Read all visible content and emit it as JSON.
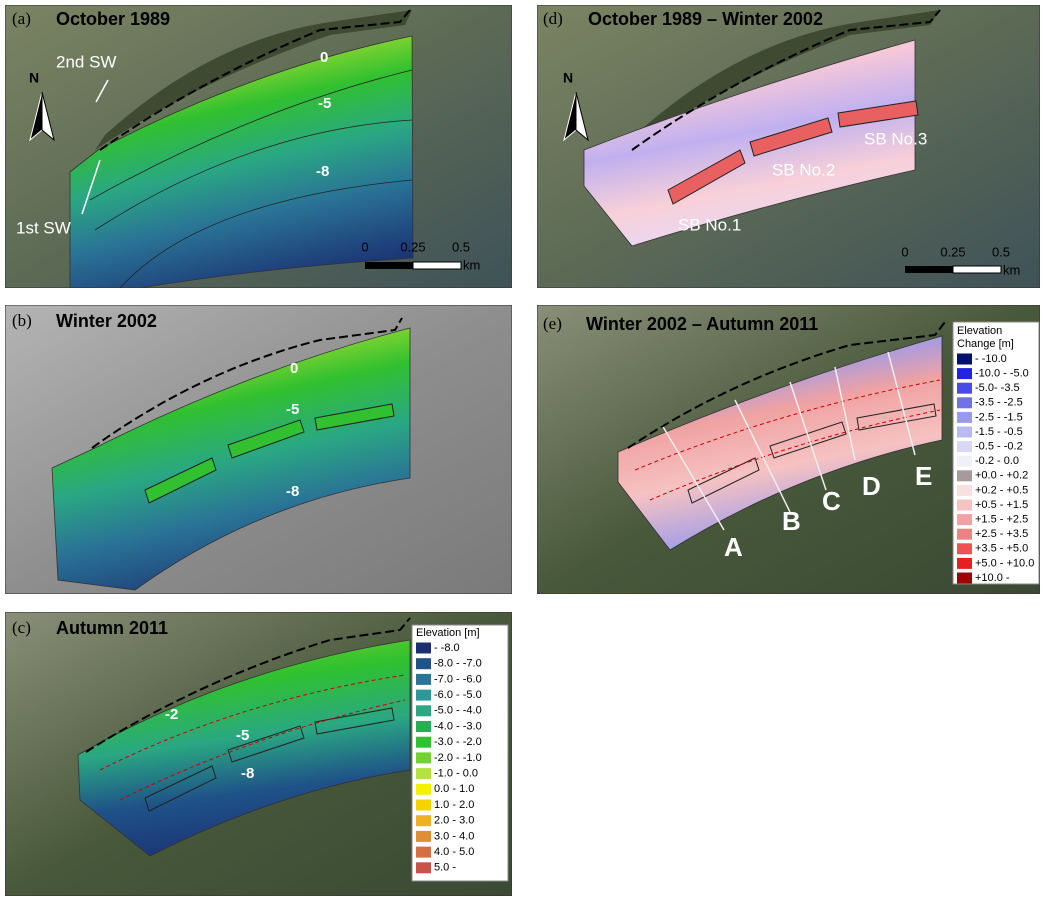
{
  "panels": {
    "a": {
      "label": "(a)",
      "title": "October 1989",
      "contours": [
        "0",
        "-5",
        "-8"
      ],
      "annotations": [
        "2nd SW",
        "1st SW"
      ],
      "north": "N",
      "scale": [
        "0",
        "0.25",
        "0.5",
        "km"
      ]
    },
    "b": {
      "label": "(b)",
      "title": "Winter 2002",
      "contours": [
        "0",
        "-5",
        "-8"
      ]
    },
    "c": {
      "label": "(c)",
      "title": "Autumn 2011",
      "contours": [
        "-2",
        "-5",
        "-8"
      ],
      "legend": {
        "title": [
          "Elevation [m]"
        ],
        "items": [
          {
            "label": "- -8.0",
            "color": "#1b2f72"
          },
          {
            "label": "-8.0 - -7.0",
            "color": "#1f5288"
          },
          {
            "label": "-7.0 - -6.0",
            "color": "#2a7496"
          },
          {
            "label": "-6.0 - -5.0",
            "color": "#2d9898"
          },
          {
            "label": "-5.0 - -4.0",
            "color": "#2aa882"
          },
          {
            "label": "-4.0 - -3.0",
            "color": "#22b052"
          },
          {
            "label": "-3.0 - -2.0",
            "color": "#2fc12f"
          },
          {
            "label": "-2.0 - -1.0",
            "color": "#72d030"
          },
          {
            "label": "-1.0 - 0.0",
            "color": "#b4e23e"
          },
          {
            "label": "0.0 - 1.0",
            "color": "#f6f000"
          },
          {
            "label": "1.0 - 2.0",
            "color": "#f6d200"
          },
          {
            "label": "2.0 - 3.0",
            "color": "#eeb024"
          },
          {
            "label": "3.0 - 4.0",
            "color": "#e08e34"
          },
          {
            "label": "4.0 - 5.0",
            "color": "#d67044"
          },
          {
            "label": "5.0 -",
            "color": "#cc5248"
          }
        ]
      }
    },
    "d": {
      "label": "(d)",
      "title": "October 1989 – Winter 2002",
      "annotations": [
        "SB No.1",
        "SB No.2",
        "SB No.3"
      ],
      "north": "N",
      "scale": [
        "0",
        "0.25",
        "0.5",
        "km"
      ]
    },
    "e": {
      "label": "(e)",
      "title": "Winter 2002 – Autumn 2011",
      "profiles": [
        "A",
        "B",
        "C",
        "D",
        "E"
      ],
      "legend": {
        "title": [
          "Elevation",
          "Change [m]"
        ],
        "items": [
          {
            "label": "- -10.0",
            "color": "#00106b"
          },
          {
            "label": "-10.0 - -5.0",
            "color": "#2222e0"
          },
          {
            "label": "-5.0- -3.5",
            "color": "#4a4ae6"
          },
          {
            "label": "-3.5 - -2.5",
            "color": "#7272e8"
          },
          {
            "label": "-2.5 - -1.5",
            "color": "#9a9aec"
          },
          {
            "label": "-1.5 - -0.5",
            "color": "#babaf0"
          },
          {
            "label": "-0.5 - -0.2",
            "color": "#d8d8f4"
          },
          {
            "label": "-0.2 - 0.0",
            "color": "#f0f0f8"
          },
          {
            "label": "+0.0 - +0.2",
            "color": "#a89a9a"
          },
          {
            "label": "+0.2 - +0.5",
            "color": "#f8e0e0"
          },
          {
            "label": "+0.5 - +1.5",
            "color": "#f6c2c2"
          },
          {
            "label": "+1.5 - +2.5",
            "color": "#f0a2a2"
          },
          {
            "label": "+2.5 - +3.5",
            "color": "#ee8282"
          },
          {
            "label": "+3.5 - +5.0",
            "color": "#ee5252"
          },
          {
            "label": "+5.0 - +10.0",
            "color": "#e62020"
          },
          {
            "label": "+10.0 -",
            "color": "#a00000"
          }
        ]
      }
    }
  }
}
